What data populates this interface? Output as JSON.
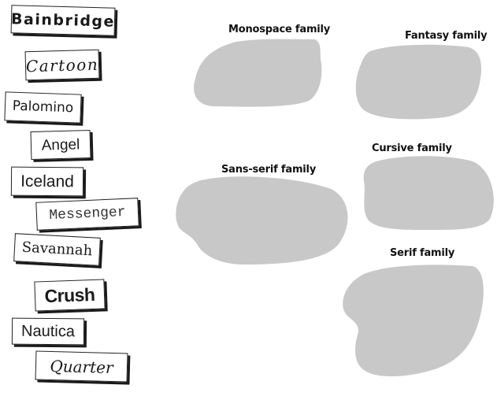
{
  "font_cards": [
    {
      "id": "bainbridge",
      "text": "Bainbridge"
    },
    {
      "id": "cartoon",
      "text": "Cartoon"
    },
    {
      "id": "palomino",
      "text": "Palomino"
    },
    {
      "id": "angel",
      "text": "Angel"
    },
    {
      "id": "iceland",
      "text": "Iceland"
    },
    {
      "id": "messenger",
      "text": "Messenger"
    },
    {
      "id": "savannah",
      "text": "Savannah"
    },
    {
      "id": "crush",
      "text": "Crush"
    },
    {
      "id": "nautica",
      "text": "Nautica"
    },
    {
      "id": "quarter",
      "text": "Quarter"
    }
  ],
  "families": [
    {
      "id": "monospace",
      "label": "Monospace family"
    },
    {
      "id": "fantasy",
      "label": "Fantasy family"
    },
    {
      "id": "sans-serif",
      "label": "Sans-serif family"
    },
    {
      "id": "cursive",
      "label": "Cursive family"
    },
    {
      "id": "serif",
      "label": "Serif family"
    }
  ],
  "colors": {
    "blob_fill": "#c8c8c8",
    "card_border": "#222222",
    "card_shadow": "#1a1a1a",
    "background": "#ffffff"
  }
}
